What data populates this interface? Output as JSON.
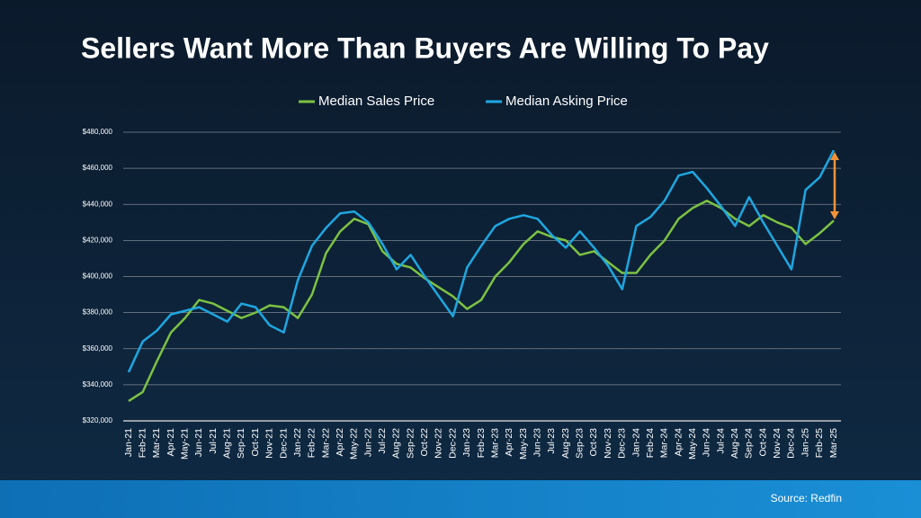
{
  "chart_data": {
    "type": "line",
    "title": "Sellers Want More Than Buyers Are Willing To Pay",
    "source": "Source: Redfin",
    "categories": [
      "Jan-21",
      "Feb-21",
      "Mar-21",
      "Apr-21",
      "May-21",
      "Jun-21",
      "Jul-21",
      "Aug-21",
      "Sep-21",
      "Oct-21",
      "Nov-21",
      "Dec-21",
      "Jan-22",
      "Feb-22",
      "Mar-22",
      "Apr-22",
      "May-22",
      "Jun-22",
      "Jul-22",
      "Aug-22",
      "Sep-22",
      "Oct-22",
      "Nov-22",
      "Dec-22",
      "Jan-23",
      "Feb-23",
      "Mar-23",
      "Apr-23",
      "May-23",
      "Jun-23",
      "Jul-23",
      "Aug-23",
      "Sep-23",
      "Oct-23",
      "Nov-23",
      "Dec-23",
      "Jan-24",
      "Feb-24",
      "Mar-24",
      "Apr-24",
      "May-24",
      "Jun-24",
      "Jul-24",
      "Aug-24",
      "Sep-24",
      "Oct-24",
      "Nov-24",
      "Dec-24",
      "Jan-25",
      "Feb-25",
      "Mar-25"
    ],
    "series": [
      {
        "name": "Median Sales Price",
        "color": "#7dc242",
        "values": [
          331000,
          336000,
          353000,
          369000,
          377000,
          387000,
          385000,
          381000,
          377000,
          380000,
          384000,
          383000,
          377000,
          390000,
          413000,
          425000,
          432000,
          429000,
          414000,
          407000,
          405000,
          399000,
          394000,
          389000,
          382000,
          387000,
          400000,
          408000,
          418000,
          425000,
          422000,
          420000,
          412000,
          414000,
          408000,
          402000,
          402000,
          412000,
          420000,
          432000,
          438000,
          442000,
          438000,
          432000,
          428000,
          434000,
          430000,
          427000,
          418000,
          424000,
          431000
        ]
      },
      {
        "name": "Median Asking Price",
        "color": "#1ea7e1",
        "values": [
          347000,
          364000,
          370000,
          379000,
          381000,
          383000,
          379000,
          375000,
          385000,
          383000,
          373000,
          369000,
          398000,
          417000,
          427000,
          435000,
          436000,
          430000,
          418000,
          404000,
          412000,
          400000,
          389000,
          378000,
          405000,
          417000,
          428000,
          432000,
          434000,
          432000,
          423000,
          416000,
          425000,
          416000,
          406000,
          393000,
          428000,
          433000,
          442000,
          456000,
          458000,
          449000,
          439000,
          428000,
          444000,
          430000,
          417000,
          404000,
          448000,
          455000,
          470000
        ]
      }
    ],
    "ylim": [
      320000,
      480000
    ],
    "yticks": [
      {
        "value": 320000,
        "label": "$320,000"
      },
      {
        "value": 340000,
        "label": "$340,000"
      },
      {
        "value": 360000,
        "label": "$360,000"
      },
      {
        "value": 380000,
        "label": "$380,000"
      },
      {
        "value": 400000,
        "label": "$400,000"
      },
      {
        "value": 420000,
        "label": "$420,000"
      },
      {
        "value": 440000,
        "label": "$440,000"
      },
      {
        "value": 460000,
        "label": "$460,000"
      },
      {
        "value": 480000,
        "label": "$480,000"
      }
    ],
    "grid": true
  }
}
